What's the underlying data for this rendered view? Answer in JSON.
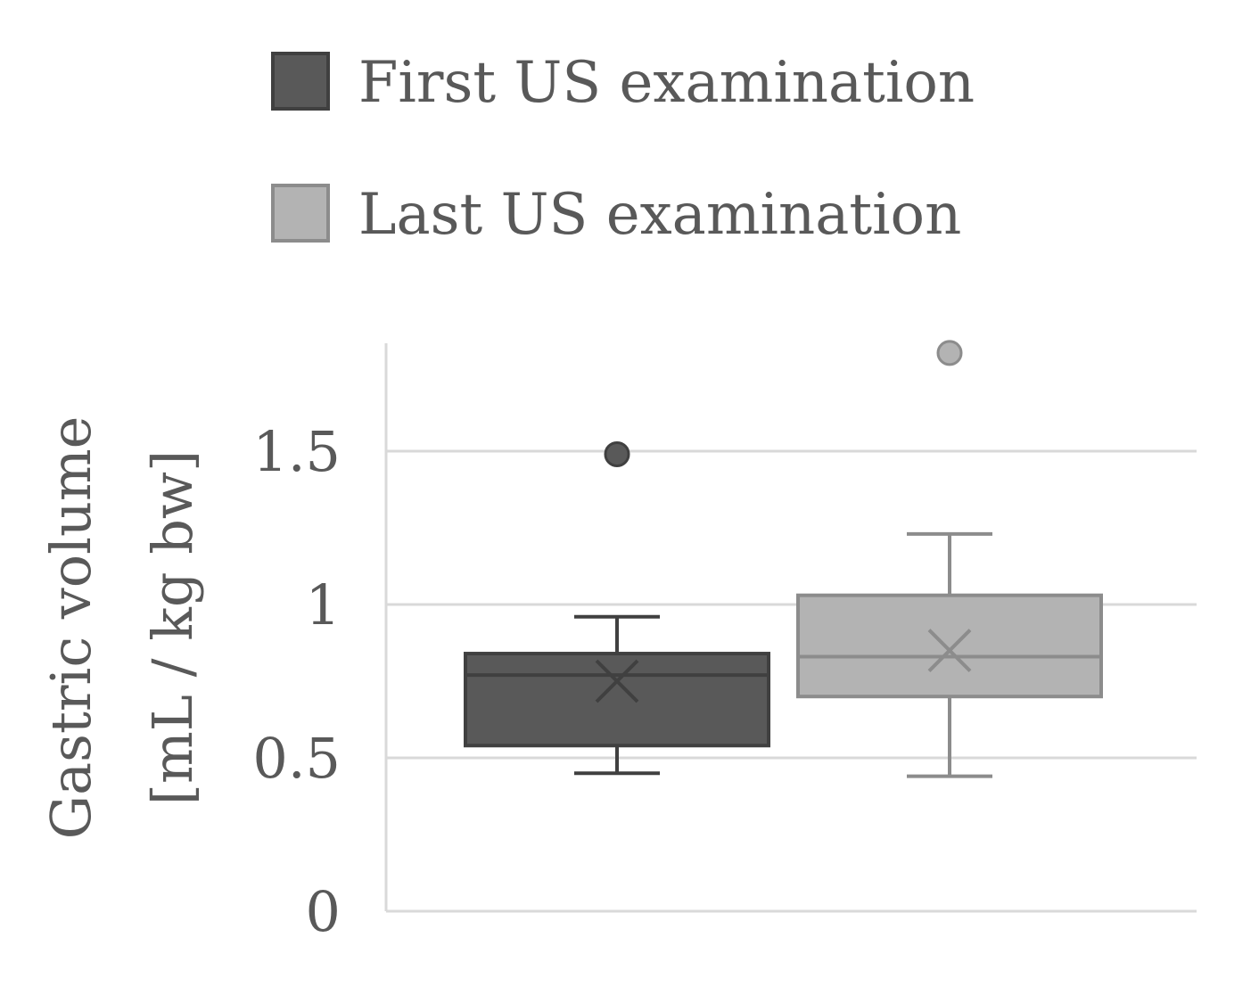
{
  "chart_data": {
    "type": "boxplot",
    "title": "",
    "ylabel_line1": "Gastric volume",
    "ylabel_line2": "[mL / kg bw]",
    "xlabel": "",
    "ylim": [
      0,
      1.85
    ],
    "yticks": [
      {
        "value": 0,
        "label": "0"
      },
      {
        "value": 0.5,
        "label": "0.5"
      },
      {
        "value": 1,
        "label": "1"
      },
      {
        "value": 1.5,
        "label": "1.5"
      }
    ],
    "grid": true,
    "legend_position": "top",
    "series": [
      {
        "name": "First US examination",
        "color": "#595959",
        "edge": "#404040",
        "line": "#404040",
        "whisker_low": 0.45,
        "q1": 0.54,
        "median": 0.77,
        "q3": 0.84,
        "whisker_high": 0.96,
        "mean": 0.75,
        "outliers": [
          1.49
        ]
      },
      {
        "name": "Last US examination",
        "color": "#b3b3b3",
        "edge": "#8c8c8c",
        "line": "#8c8c8c",
        "whisker_low": 0.44,
        "q1": 0.7,
        "median": 0.83,
        "q3": 1.03,
        "whisker_high": 1.23,
        "mean": 0.85,
        "outliers": [
          1.82
        ]
      }
    ]
  }
}
